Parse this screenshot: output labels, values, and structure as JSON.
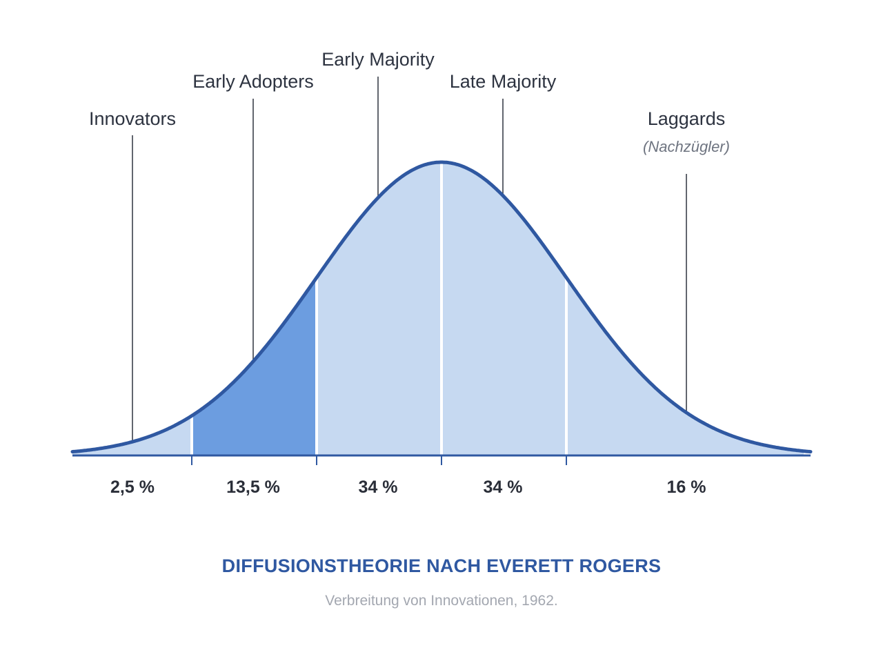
{
  "chart_data": {
    "type": "area",
    "distribution": "normal",
    "title": "DIFFUSIONSTHEORIE NACH EVERETT ROGERS",
    "subtitle": "Verbreitung von Innovationen, 1962.",
    "x_range_sd": [
      -3,
      2.9
    ],
    "segment_boundaries_sd": [
      -2,
      -1,
      0,
      1
    ],
    "segments": [
      {
        "name": "Innovators",
        "sub": "",
        "percent": "2,5 %",
        "range_sd": [
          -3,
          -2
        ],
        "highlight": false
      },
      {
        "name": "Early Adopters",
        "sub": "",
        "percent": "13,5 %",
        "range_sd": [
          -2,
          -1
        ],
        "highlight": true
      },
      {
        "name": "Early Majority",
        "sub": "",
        "percent": "34 %",
        "range_sd": [
          -1,
          0
        ],
        "highlight": false
      },
      {
        "name": "Late Majority",
        "sub": "",
        "percent": "34 %",
        "range_sd": [
          0,
          1
        ],
        "highlight": false
      },
      {
        "name": "Laggards",
        "sub": "(Nachzügler)",
        "percent": "16 %",
        "range_sd": [
          1,
          2.9
        ],
        "highlight": false
      }
    ],
    "grid": false,
    "legend": "none"
  },
  "colors": {
    "curve": "#2f58a1",
    "fill_light": "#c6d9f1",
    "fill_highlight": "#6c9de0",
    "axis": "#2f58a1",
    "leader_line": "#3a3f4a",
    "title": "#2f58a1",
    "subtitle": "#a3a7b0"
  }
}
